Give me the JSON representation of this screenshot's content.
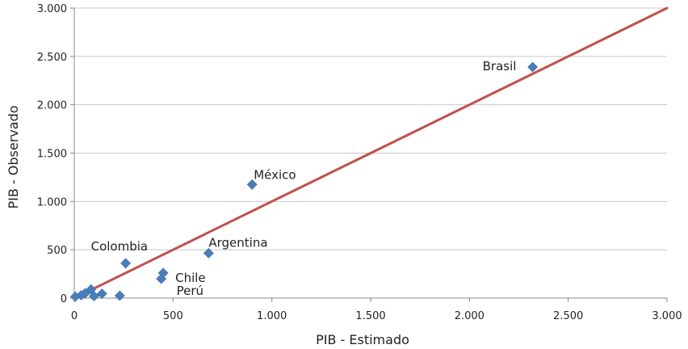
{
  "chart_data": {
    "type": "scatter",
    "title": "",
    "xlabel": "PIB - Estimado",
    "ylabel": "PIB - Observado",
    "xlim": [
      0,
      3000
    ],
    "ylim": [
      0,
      3000
    ],
    "x_ticks": [
      0,
      500,
      1000,
      1500,
      2000,
      2500,
      3000
    ],
    "y_ticks": [
      0,
      500,
      1000,
      1500,
      2000,
      2500,
      3000
    ],
    "x_tick_labels": [
      "0",
      "500",
      "1.000",
      "1.500",
      "2.000",
      "2.500",
      "3.000"
    ],
    "y_tick_labels": [
      "0",
      "500",
      "1.000",
      "1.500",
      "2.000",
      "2.500",
      "3.000"
    ],
    "grid": "horizontal",
    "legend": "none",
    "marker_color": "#4a7ebb",
    "line_color": "#c0504d",
    "reference_line": {
      "x": [
        0,
        3000
      ],
      "y": [
        0,
        3000
      ]
    },
    "points": [
      {
        "x": 2320,
        "y": 2390,
        "label": "Brasil"
      },
      {
        "x": 900,
        "y": 1175,
        "label": "México"
      },
      {
        "x": 680,
        "y": 465,
        "label": "Argentina"
      },
      {
        "x": 260,
        "y": 360,
        "label": "Colombia"
      },
      {
        "x": 450,
        "y": 260,
        "label": "Chile"
      },
      {
        "x": 440,
        "y": 200,
        "label": "Perú"
      },
      {
        "x": 230,
        "y": 25,
        "label": ""
      },
      {
        "x": 140,
        "y": 45,
        "label": ""
      },
      {
        "x": 100,
        "y": 20,
        "label": ""
      },
      {
        "x": 85,
        "y": 90,
        "label": ""
      },
      {
        "x": 55,
        "y": 50,
        "label": ""
      },
      {
        "x": 35,
        "y": 30,
        "label": ""
      },
      {
        "x": 5,
        "y": 15,
        "label": ""
      }
    ]
  }
}
